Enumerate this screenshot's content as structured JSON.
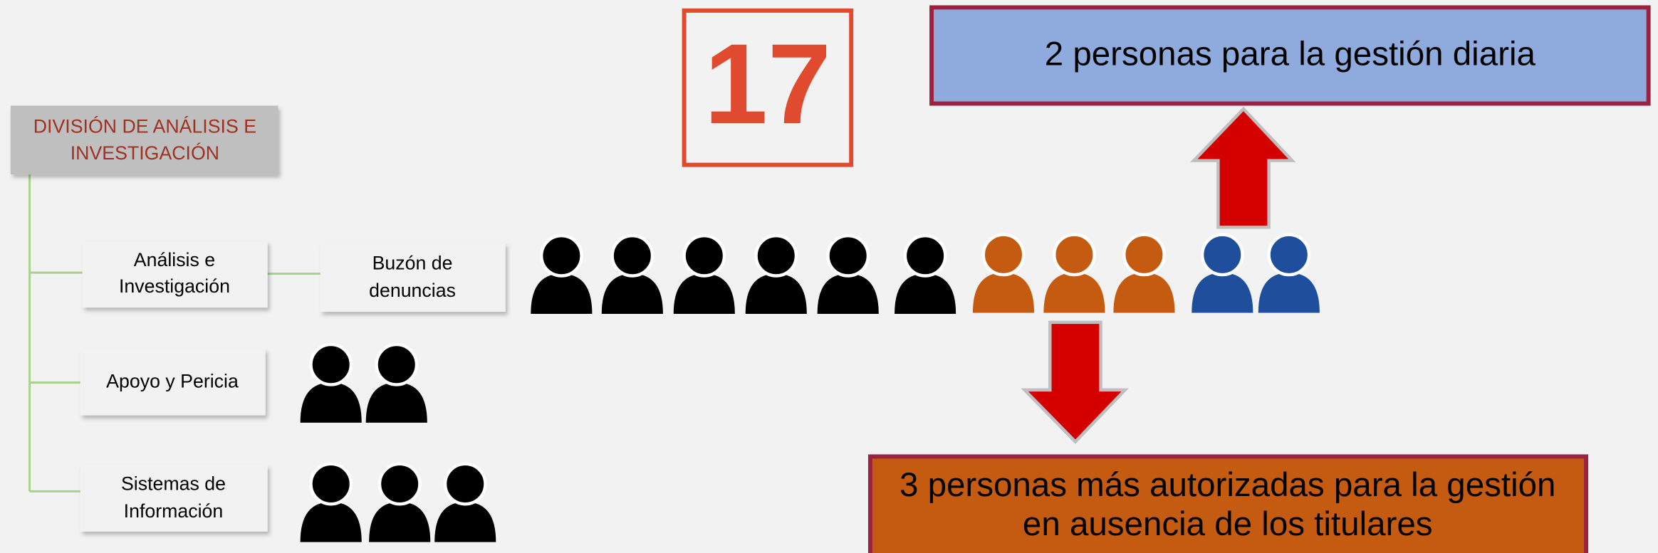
{
  "counter": "17",
  "top_box": "2 personas para la gestión diaria",
  "bottom_box": [
    "3 personas más autorizadas para la gestión",
    "en ausencia de los titulares"
  ],
  "division": [
    "DIVISIÓN DE ANÁLISIS E",
    "INVESTIGACIÓN"
  ],
  "units": [
    [
      "Análisis e",
      "Investigación"
    ],
    [
      "Apoyo y Pericia"
    ],
    [
      "Sistemas de",
      "Información"
    ]
  ],
  "sub_unit": [
    "Buzón de",
    "denuncias"
  ]
}
